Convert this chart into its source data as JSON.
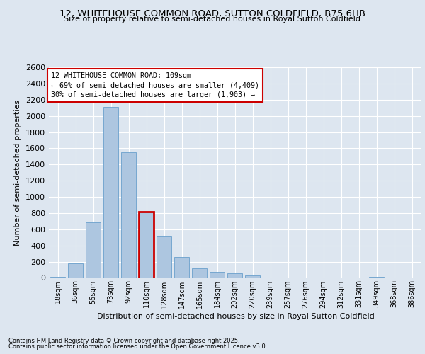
{
  "title": "12, WHITEHOUSE COMMON ROAD, SUTTON COLDFIELD, B75 6HB",
  "subtitle": "Size of property relative to semi-detached houses in Royal Sutton Coldfield",
  "xlabel": "Distribution of semi-detached houses by size in Royal Sutton Coldfield",
  "ylabel": "Number of semi-detached properties",
  "categories": [
    "18sqm",
    "36sqm",
    "55sqm",
    "73sqm",
    "92sqm",
    "110sqm",
    "128sqm",
    "147sqm",
    "165sqm",
    "184sqm",
    "202sqm",
    "220sqm",
    "239sqm",
    "257sqm",
    "276sqm",
    "294sqm",
    "312sqm",
    "331sqm",
    "349sqm",
    "368sqm",
    "386sqm"
  ],
  "values": [
    10,
    175,
    690,
    2110,
    1550,
    820,
    515,
    255,
    120,
    70,
    60,
    30,
    5,
    0,
    0,
    5,
    0,
    0,
    10,
    0,
    0
  ],
  "bar_color": "#adc6e0",
  "bar_edge_color": "#6aa0cc",
  "highlight_index": 5,
  "annotation_title": "12 WHITEHOUSE COMMON ROAD: 109sqm",
  "annotation_line1": "← 69% of semi-detached houses are smaller (4,409)",
  "annotation_line2": "30% of semi-detached houses are larger (1,903) →",
  "annotation_box_color": "#cc0000",
  "footer_line1": "Contains HM Land Registry data © Crown copyright and database right 2025.",
  "footer_line2": "Contains public sector information licensed under the Open Government Licence v3.0.",
  "bg_color": "#dde6f0",
  "plot_bg_color": "#dde6f0",
  "ylim": [
    0,
    2600
  ],
  "yticks": [
    0,
    200,
    400,
    600,
    800,
    1000,
    1200,
    1400,
    1600,
    1800,
    2000,
    2200,
    2400,
    2600
  ]
}
